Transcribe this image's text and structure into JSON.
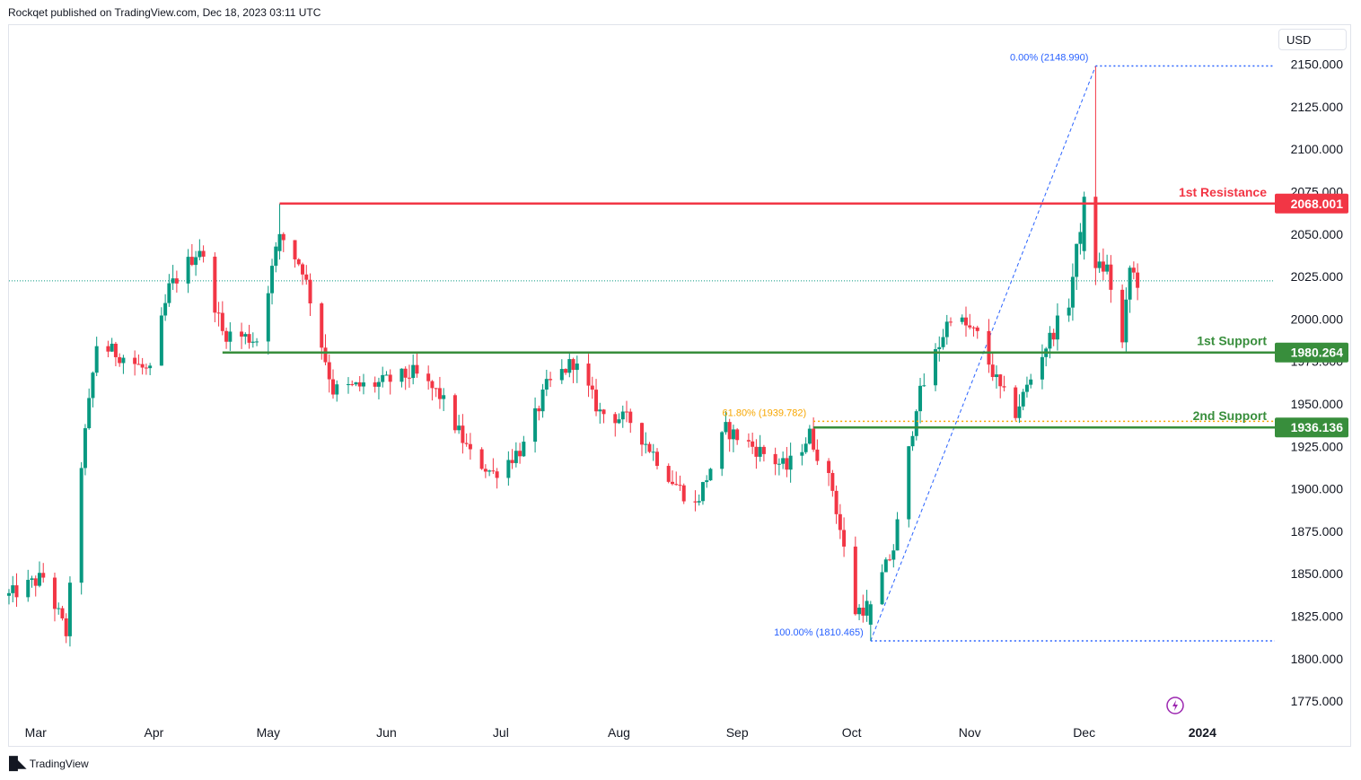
{
  "publisher_text": "Rockqet published on TradingView.com, Dec 18, 2023 03:11 UTC",
  "currency": "USD",
  "footer": {
    "logo_icon": "tradingview-logo-icon",
    "brand": "TradingView"
  },
  "colors": {
    "up": "#089981",
    "down": "#f23645",
    "resistance": "#f23645",
    "support": "#388e3c",
    "fib_line": "#2962ff",
    "fib_618": "#f7a600",
    "last_price_line": "#089981",
    "axis_text": "#131722"
  },
  "chart_data": {
    "type": "candlestick",
    "title": "",
    "ylim": [
      1765,
      2172
    ],
    "yticks": [
      1775,
      1800,
      1825,
      1850,
      1875,
      1900,
      1925,
      1950,
      1975,
      2000,
      2025,
      2050,
      2075,
      2100,
      2125,
      2150
    ],
    "ytick_labels": [
      "1775.000",
      "1800.000",
      "1825.000",
      "1850.000",
      "1875.000",
      "1900.000",
      "1925.000",
      "1950.000",
      "1975.000",
      "2000.000",
      "2025.000",
      "2050.000",
      "2075.000",
      "2100.000",
      "2125.000",
      "2150.000"
    ],
    "x_range": [
      "2023-02-22",
      "2024-01-20"
    ],
    "xticks": [
      {
        "date": "2023-03-01",
        "label": "Mar"
      },
      {
        "date": "2023-04-01",
        "label": "Apr"
      },
      {
        "date": "2023-05-01",
        "label": "May"
      },
      {
        "date": "2023-06-01",
        "label": "Jun"
      },
      {
        "date": "2023-07-01",
        "label": "Jul"
      },
      {
        "date": "2023-08-01",
        "label": "Aug"
      },
      {
        "date": "2023-09-01",
        "label": "Sep"
      },
      {
        "date": "2023-10-01",
        "label": "Oct"
      },
      {
        "date": "2023-11-01",
        "label": "Nov"
      },
      {
        "date": "2023-12-01",
        "label": "Dec"
      },
      {
        "date": "2024-01-01",
        "label": "2024"
      }
    ],
    "grid": false,
    "last_price": 2022.5,
    "levels": [
      {
        "name": "1st Resistance",
        "value": 2068.001,
        "label": "2068.001",
        "color": "#f23645",
        "start": "2023-05-04"
      },
      {
        "name": "1st Support",
        "value": 1980.264,
        "label": "1980.264",
        "color": "#388e3c",
        "start": "2023-04-19"
      },
      {
        "name": "2nd Support",
        "value": 1936.136,
        "label": "1936.136",
        "color": "#388e3c",
        "start": "2023-09-21"
      }
    ],
    "fibonacci": [
      {
        "label": "0.00% (2148.990)",
        "value": 2148.99,
        "start": "2023-12-04"
      },
      {
        "label": "61.80% (1939.782)",
        "value": 1939.782,
        "start": "2023-09-21"
      },
      {
        "label": "100.00% (1810.465)",
        "value": 1810.465,
        "start": "2023-10-06"
      }
    ],
    "fib_trend": {
      "from": {
        "date": "2023-10-06",
        "value": 1810.465
      },
      "to": {
        "date": "2023-12-04",
        "value": 2148.99
      }
    },
    "anchor_closes": [
      [
        "2023-02-22",
        1837
      ],
      [
        "2023-03-03",
        1848
      ],
      [
        "2023-03-09",
        1815
      ],
      [
        "2023-03-13",
        1915
      ],
      [
        "2023-03-17",
        1985
      ],
      [
        "2023-03-24",
        1978
      ],
      [
        "2023-03-31",
        1968
      ],
      [
        "2023-04-05",
        2018
      ],
      [
        "2023-04-13",
        2042
      ],
      [
        "2023-04-19",
        1992
      ],
      [
        "2023-04-28",
        1988
      ],
      [
        "2023-05-04",
        2050
      ],
      [
        "2023-05-10",
        2030
      ],
      [
        "2023-05-18",
        1958
      ],
      [
        "2023-05-30",
        1962
      ],
      [
        "2023-06-08",
        1968
      ],
      [
        "2023-06-15",
        1955
      ],
      [
        "2023-06-23",
        1920
      ],
      [
        "2023-06-29",
        1909
      ],
      [
        "2023-07-07",
        1925
      ],
      [
        "2023-07-13",
        1960
      ],
      [
        "2023-07-20",
        1975
      ],
      [
        "2023-07-27",
        1945
      ],
      [
        "2023-08-04",
        1940
      ],
      [
        "2023-08-15",
        1905
      ],
      [
        "2023-08-21",
        1890
      ],
      [
        "2023-08-29",
        1935
      ],
      [
        "2023-09-05",
        1925
      ],
      [
        "2023-09-14",
        1912
      ],
      [
        "2023-09-20",
        1932
      ],
      [
        "2023-09-26",
        1900
      ],
      [
        "2023-10-02",
        1828
      ],
      [
        "2023-10-06",
        1832
      ],
      [
        "2023-10-12",
        1865
      ],
      [
        "2023-10-18",
        1950
      ],
      [
        "2023-10-27",
        2003
      ],
      [
        "2023-11-03",
        1990
      ],
      [
        "2023-11-09",
        1958
      ],
      [
        "2023-11-13",
        1945
      ],
      [
        "2023-11-20",
        1980
      ],
      [
        "2023-11-27",
        2010
      ],
      [
        "2023-12-01",
        2070
      ],
      [
        "2023-12-04",
        2030
      ],
      [
        "2023-12-07",
        2030
      ],
      [
        "2023-12-11",
        1985
      ],
      [
        "2023-12-13",
        2030
      ],
      [
        "2023-12-15",
        2022
      ]
    ]
  },
  "annotations": {
    "res1": "1st Resistance",
    "sup1": "1st Support",
    "sup2": "2nd Support",
    "res1_badge": "2068.001",
    "sup1_badge": "1980.264",
    "sup2_badge": "1936.136",
    "fib0": "0.00% (2148.990)",
    "fib618": "61.80% (1939.782)",
    "fib100": "100.00% (1810.465)"
  }
}
